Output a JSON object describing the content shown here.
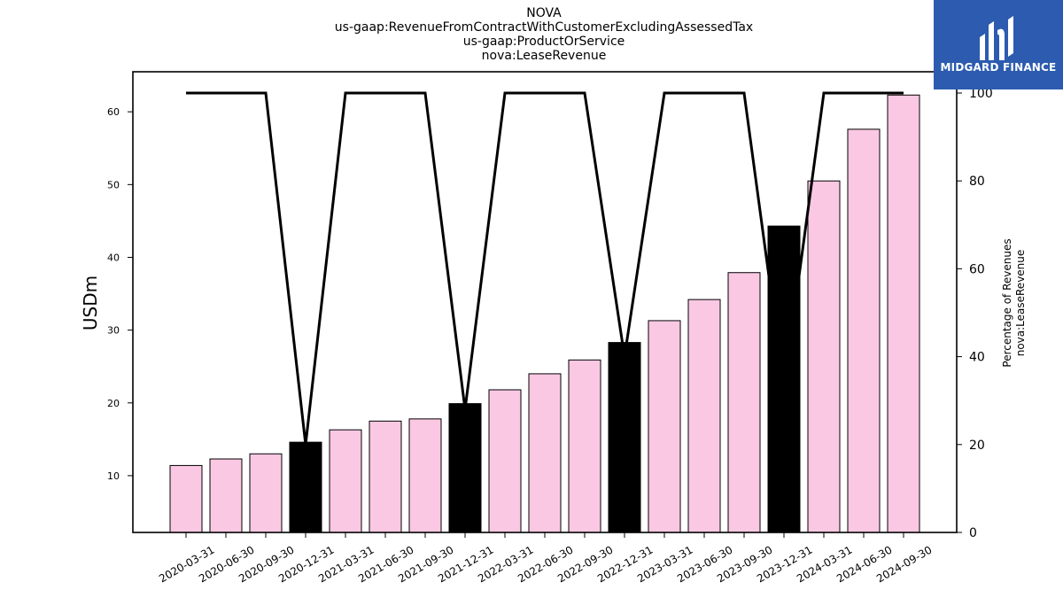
{
  "title": {
    "lines": [
      "NOVA",
      "us-gaap:RevenueFromContractWithCustomerExcludingAssessedTax",
      "us-gaap:ProductOrService",
      "nova:LeaseRevenue"
    ]
  },
  "logo": {
    "text": "MIDGARD FINANCE",
    "background": "#2c5bb0"
  },
  "chart_data": {
    "type": "bar",
    "categories": [
      "2020-03-31",
      "2020-06-30",
      "2020-09-30",
      "2020-12-31",
      "2021-03-31",
      "2021-06-30",
      "2021-09-30",
      "2021-12-31",
      "2022-03-31",
      "2022-06-30",
      "2022-09-30",
      "2022-12-31",
      "2023-03-31",
      "2023-06-30",
      "2023-09-30",
      "2023-12-31",
      "2024-03-31",
      "2024-06-30",
      "2024-09-30"
    ],
    "ylabel": "USDm",
    "ylim": [
      2.2,
      65.5
    ],
    "yticks": [
      10,
      20,
      30,
      40,
      50,
      60
    ],
    "y2label": [
      "Percentage of Revenues",
      "nova:LeaseRevenue"
    ],
    "y2lim": [
      0,
      100
    ],
    "y2ticks": [
      0,
      20,
      40,
      60,
      80,
      100
    ],
    "series": [
      {
        "chart": "bar",
        "values": [
          11.4,
          12.3,
          13.0,
          14.6,
          16.3,
          17.5,
          17.8,
          19.9,
          21.8,
          24.0,
          25.9,
          28.3,
          31.3,
          34.2,
          37.9,
          44.3,
          50.5,
          57.6,
          62.3
        ],
        "colors": [
          "#fbc8e3",
          "#fbc8e3",
          "#fbc8e3",
          "#000000",
          "#fbc8e3",
          "#fbc8e3",
          "#fbc8e3",
          "#000000",
          "#fbc8e3",
          "#fbc8e3",
          "#fbc8e3",
          "#000000",
          "#fbc8e3",
          "#fbc8e3",
          "#fbc8e3",
          "#000000",
          "#fbc8e3",
          "#fbc8e3",
          "#fbc8e3"
        ]
      },
      {
        "chart": "line",
        "axis": "right",
        "values": [
          100,
          100,
          100,
          20,
          100,
          100,
          100,
          28,
          100,
          100,
          100,
          40,
          100,
          100,
          100,
          33,
          100,
          100,
          100
        ],
        "color": "#000000"
      }
    ],
    "bar_colors": {
      "regular": "#fbc8e3",
      "fiscal_year_end": "#000000"
    }
  }
}
